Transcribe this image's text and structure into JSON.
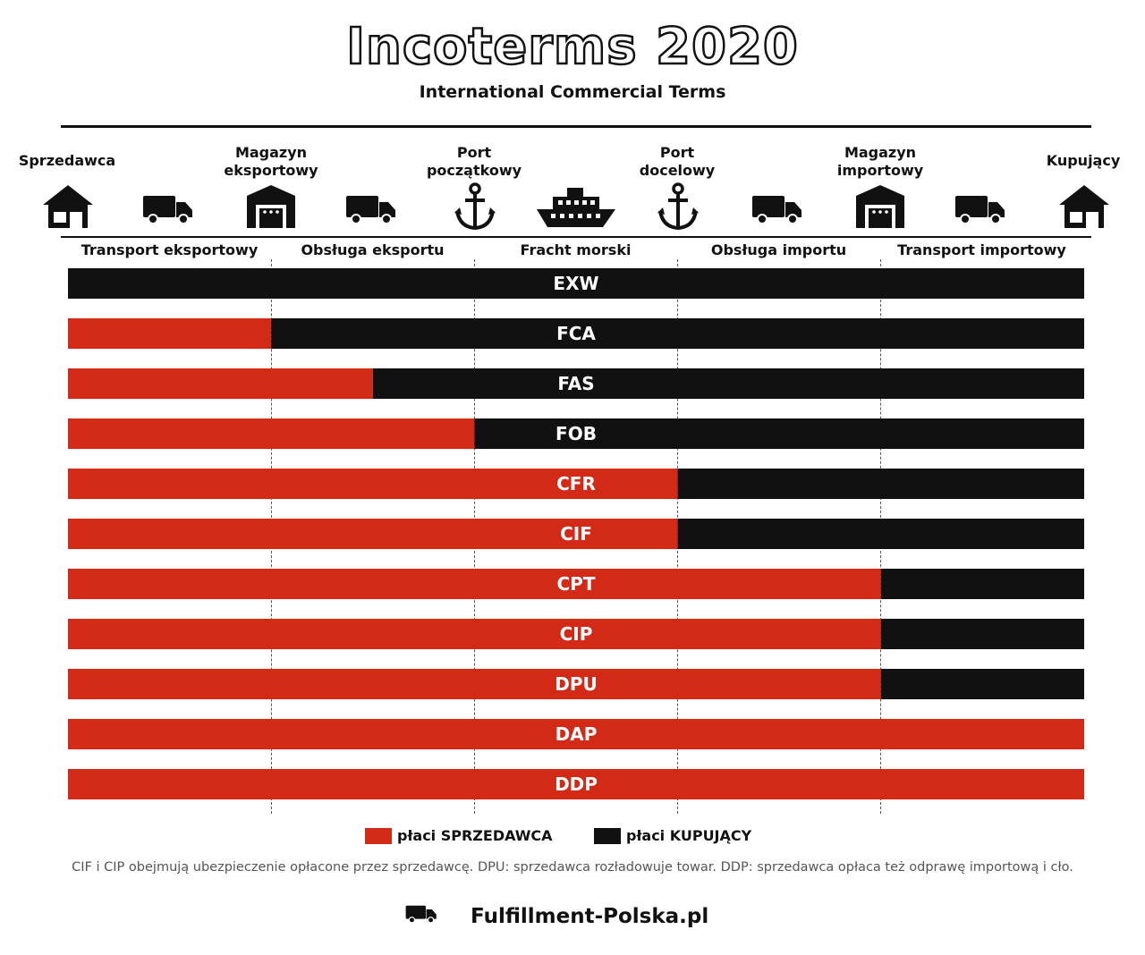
{
  "header": {
    "title": "Incoterms 2020",
    "subtitle": "International Commercial Terms"
  },
  "places": [
    {
      "label": "Sprzedawca",
      "icon": "house-icon"
    },
    {
      "label": "Magazyn\neksportowy",
      "icon": "warehouse-icon"
    },
    {
      "label": "Port\npoczątkowy",
      "icon": "anchor-icon"
    },
    {
      "label": "Port\ndocelowy",
      "icon": "anchor-icon"
    },
    {
      "label": "Magazyn\nimportowy",
      "icon": "warehouse-icon"
    },
    {
      "label": "Kupujący",
      "icon": "house-icon"
    }
  ],
  "transport_icons": [
    "truck-icon",
    "truck-icon",
    "ship-icon",
    "truck-icon",
    "truck-icon"
  ],
  "stages": [
    "Transport eksportowy",
    "Obsługa eksportu",
    "Fracht morski",
    "Obsługa importu",
    "Transport importowy"
  ],
  "chart_data": {
    "type": "bar",
    "categories": [
      "EXW",
      "FCA",
      "FAS",
      "FOB",
      "CFR",
      "CIF",
      "CPT",
      "CIP",
      "DPU",
      "DAP",
      "DDP"
    ],
    "series": [
      {
        "name": "płaci SPRZEDAWCA",
        "color": "#d22a17",
        "values": [
          0,
          1,
          1.5,
          2,
          3,
          3,
          4,
          4,
          4,
          5,
          5
        ]
      },
      {
        "name": "płaci KUPUJĄCY",
        "color": "#111111",
        "values": [
          5,
          4,
          3.5,
          3,
          2,
          2,
          1,
          1,
          1,
          0,
          0
        ]
      }
    ],
    "xlim": [
      0,
      5
    ],
    "value_unit": "stages covered (of 5)"
  },
  "legend": {
    "seller": "płaci SPRZEDAWCA",
    "buyer": "płaci KUPUJĄCY",
    "seller_color": "#d22a17",
    "buyer_color": "#111111"
  },
  "footnote": "CIF i CIP obejmują ubezpieczenie opłacone przez sprzedawcę. DPU: sprzedawca rozładowuje towar. DDP: sprzedawca opłaca też odprawę importową i cło.",
  "brand": {
    "text": "Fulfillment-Polska.pl",
    "icon": "truck-icon"
  }
}
